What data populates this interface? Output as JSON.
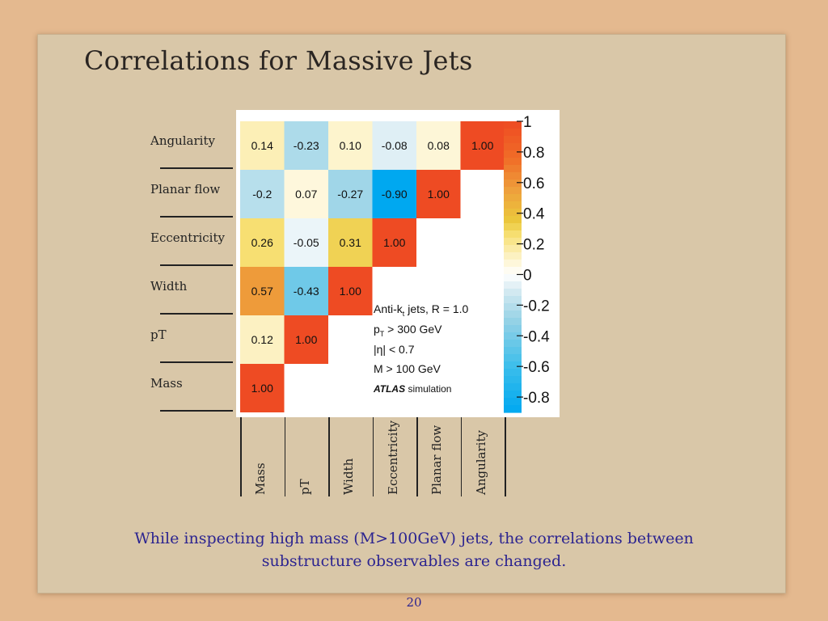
{
  "slide": {
    "title": "Correlations for Massive Jets",
    "caption_line1": "While inspecting high mass (M>100GeV) jets, the correlations between",
    "caption_line2": "substructure observables are changed.",
    "page_number": "20"
  },
  "chart_data": {
    "type": "heatmap",
    "row_labels_top_to_bottom": [
      "Angularity",
      "Planar flow",
      "Eccentricity",
      "Width",
      "pT",
      "Mass"
    ],
    "col_labels_left_to_right": [
      "Mass",
      "pT",
      "Width",
      "Eccentricity",
      "Planar flow",
      "Angularity"
    ],
    "cells": [
      {
        "row": "Angularity",
        "col": "Mass",
        "value": 0.14,
        "label": "0.14"
      },
      {
        "row": "Angularity",
        "col": "pT",
        "value": -0.23,
        "label": "-0.23"
      },
      {
        "row": "Angularity",
        "col": "Width",
        "value": 0.1,
        "label": "0.10"
      },
      {
        "row": "Angularity",
        "col": "Eccentricity",
        "value": -0.08,
        "label": "-0.08"
      },
      {
        "row": "Angularity",
        "col": "Planar flow",
        "value": 0.08,
        "label": "0.08"
      },
      {
        "row": "Angularity",
        "col": "Angularity",
        "value": 1.0,
        "label": "1.00"
      },
      {
        "row": "Planar flow",
        "col": "Mass",
        "value": -0.2,
        "label": "-0.2"
      },
      {
        "row": "Planar flow",
        "col": "pT",
        "value": 0.07,
        "label": "0.07"
      },
      {
        "row": "Planar flow",
        "col": "Width",
        "value": -0.27,
        "label": "-0.27"
      },
      {
        "row": "Planar flow",
        "col": "Eccentricity",
        "value": -0.9,
        "label": "-0.90"
      },
      {
        "row": "Planar flow",
        "col": "Planar flow",
        "value": 1.0,
        "label": "1.00"
      },
      {
        "row": "Eccentricity",
        "col": "Mass",
        "value": 0.26,
        "label": "0.26"
      },
      {
        "row": "Eccentricity",
        "col": "pT",
        "value": -0.05,
        "label": "-0.05"
      },
      {
        "row": "Eccentricity",
        "col": "Width",
        "value": 0.31,
        "label": "0.31"
      },
      {
        "row": "Eccentricity",
        "col": "Eccentricity",
        "value": 1.0,
        "label": "1.00"
      },
      {
        "row": "Width",
        "col": "Mass",
        "value": 0.57,
        "label": "0.57"
      },
      {
        "row": "Width",
        "col": "pT",
        "value": -0.43,
        "label": "-0.43"
      },
      {
        "row": "Width",
        "col": "Width",
        "value": 1.0,
        "label": "1.00"
      },
      {
        "row": "pT",
        "col": "Mass",
        "value": 0.12,
        "label": "0.12"
      },
      {
        "row": "pT",
        "col": "pT",
        "value": 1.0,
        "label": "1.00"
      },
      {
        "row": "Mass",
        "col": "Mass",
        "value": 1.0,
        "label": "1.00"
      }
    ],
    "colorbar": {
      "range": [
        -0.9,
        1.0
      ],
      "ticks": [
        1,
        0.8,
        0.6,
        0.4,
        0.2,
        0,
        -0.2,
        -0.4,
        -0.6,
        -0.8
      ],
      "tick_labels": [
        "1",
        "0.8",
        "0.6",
        "0.4",
        "0.2",
        "0",
        "-0.2",
        "-0.4",
        "-0.6",
        "-0.8"
      ]
    },
    "legend_text": {
      "line1": "Anti-k",
      "line1_sub": "t",
      "line1_rest": " jets, R = 1.0",
      "line2": "p",
      "line2_sub": "T",
      "line2_rest": " > 300 GeV",
      "line3": "|η| < 0.7",
      "line4": "M > 100 GeV",
      "atlas": "ATLAS",
      "atlas_rest": "simulation"
    }
  }
}
